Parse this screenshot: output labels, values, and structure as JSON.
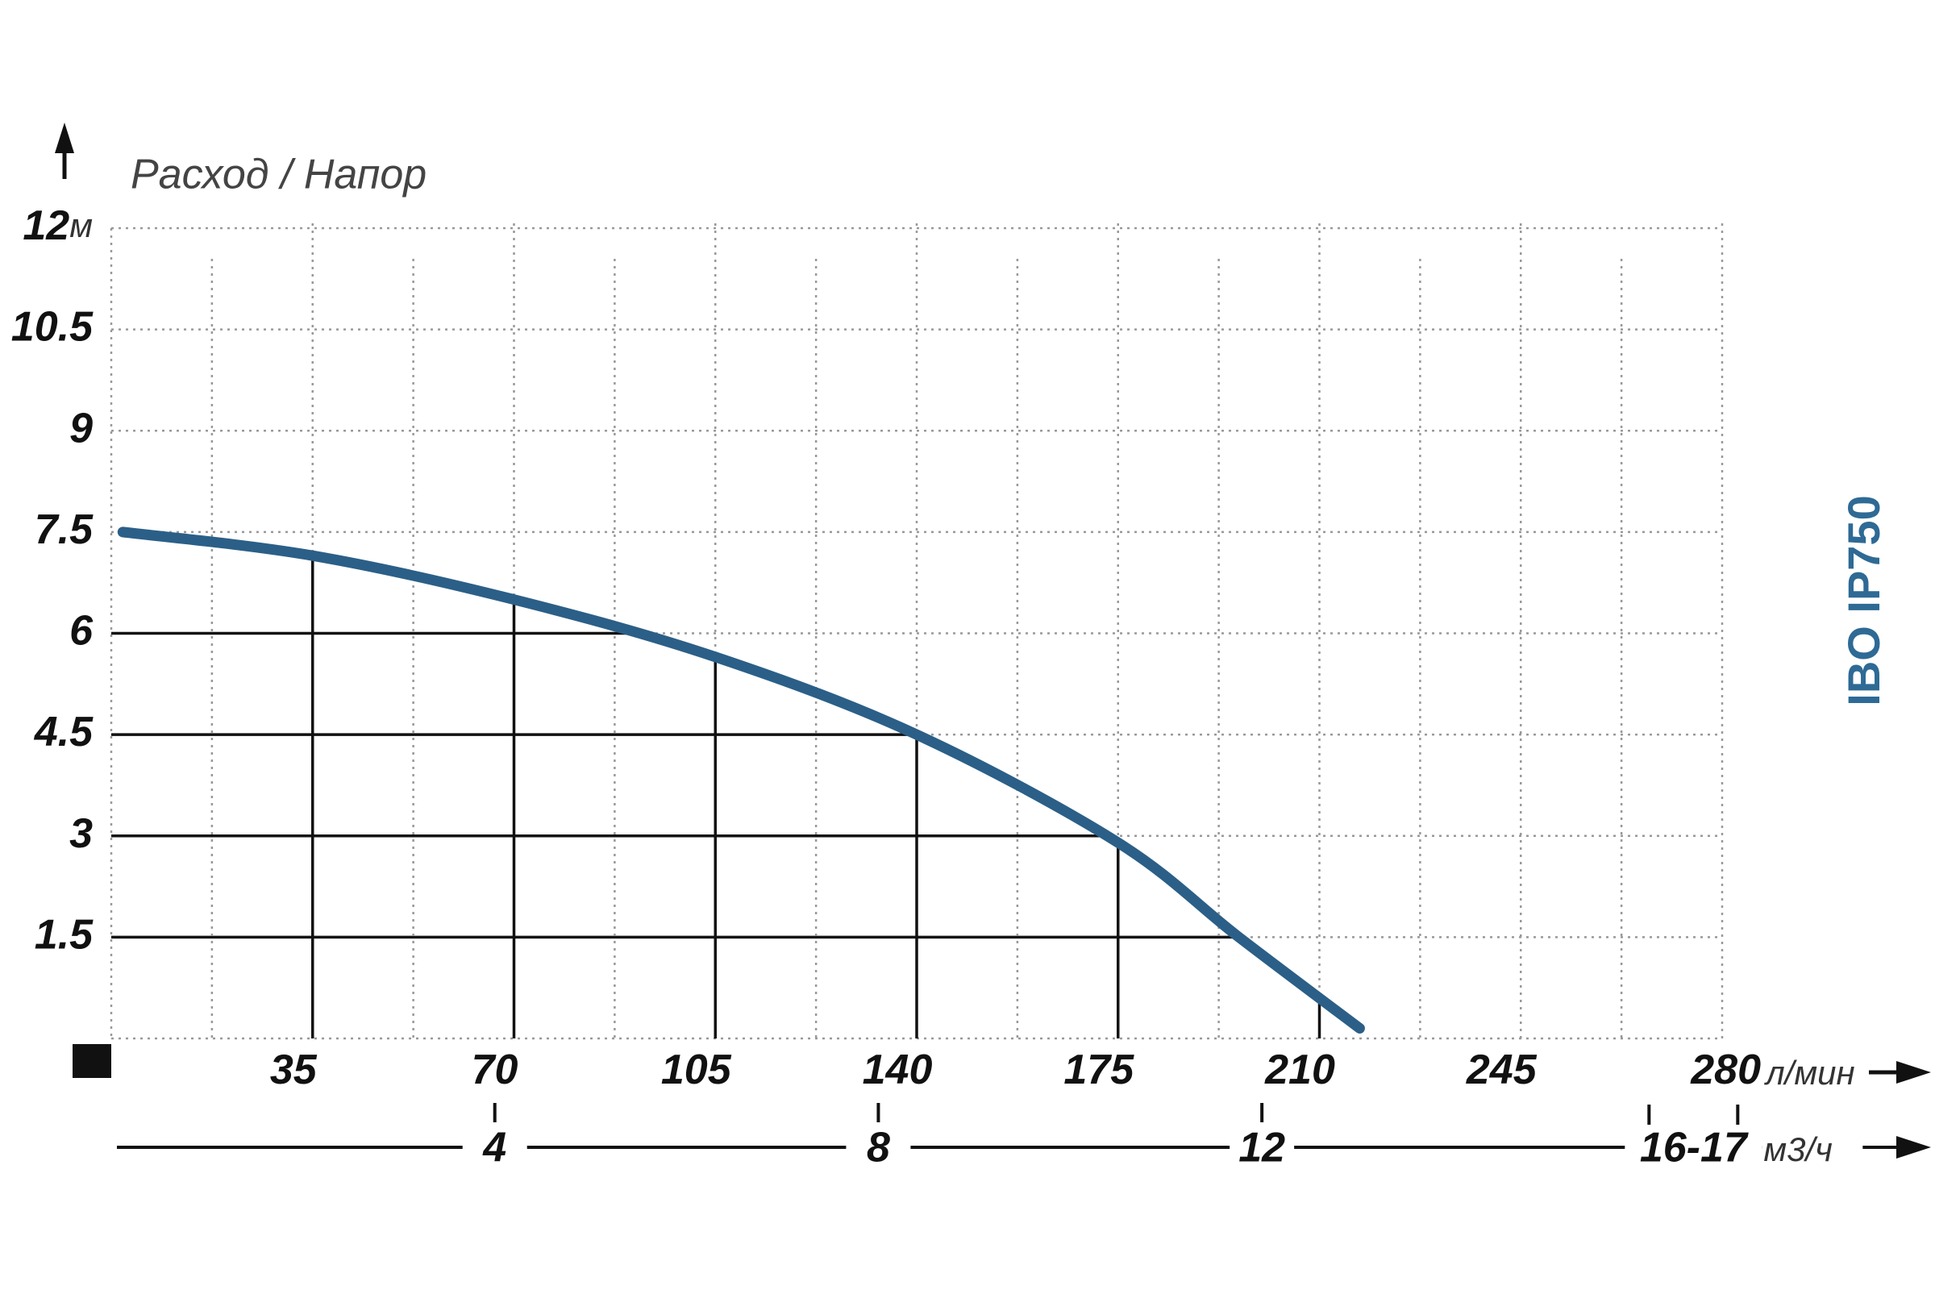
{
  "chart_data": {
    "type": "line",
    "title": "Расход / Напор",
    "model": "IBO IP750",
    "y_unit": "м",
    "x_unit": "л/мин",
    "x2_unit": "м3/ч",
    "xlim": [
      0,
      280
    ],
    "xticks": [
      35,
      70,
      105,
      140,
      175,
      210,
      245,
      280
    ],
    "ylim": [
      0,
      12
    ],
    "yticks": [
      1.5,
      3,
      4.5,
      6,
      7.5,
      9,
      10.5,
      12
    ],
    "x2lim": [
      0,
      16.8
    ],
    "x2ticks": [
      4,
      8,
      12,
      {
        "value": 16.5,
        "label": "16-17"
      }
    ],
    "grid": true,
    "series": [
      {
        "name": "IBO IP750",
        "color": "#2b5f87",
        "x": [
          2,
          35,
          70,
          105,
          140,
          175,
          196,
          217
        ],
        "values": [
          7.5,
          7.15,
          6.5,
          5.65,
          4.5,
          2.9,
          1.5,
          0.15
        ]
      }
    ]
  }
}
